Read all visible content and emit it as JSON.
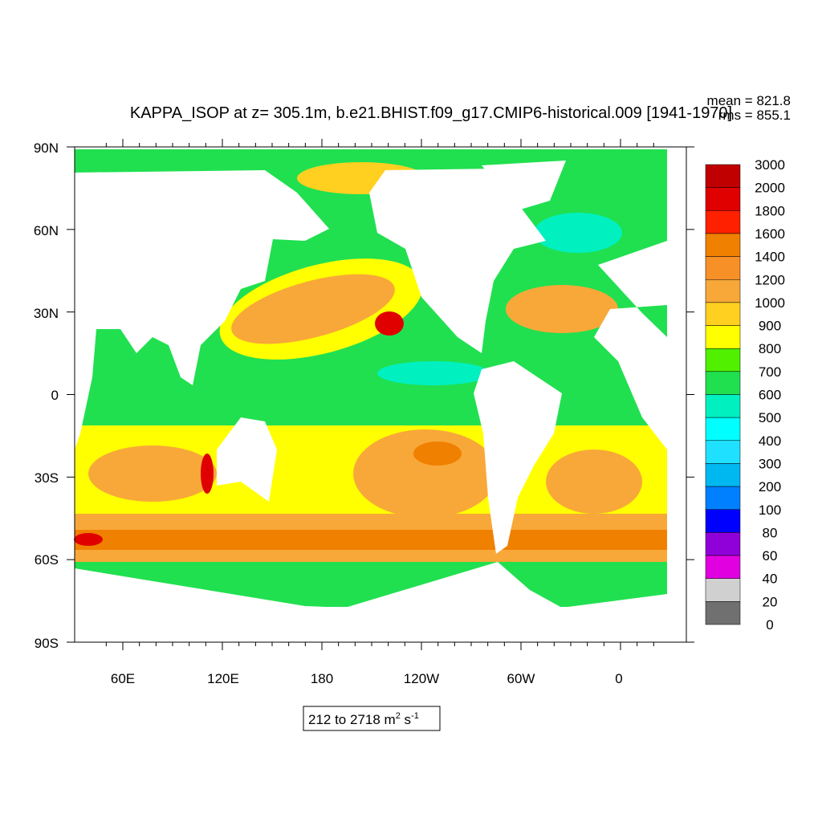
{
  "title": "KAPPA_ISOP at z= 305.1m, b.e21.BHIST.f09_g17.CMIP6-historical.009 [1941-1970]",
  "stats": {
    "mean": "mean = 821.8",
    "rms": "rms = 855.1"
  },
  "lat_labels": [
    "90N",
    "60N",
    "30N",
    "0",
    "30S",
    "60S",
    "90S"
  ],
  "lon_labels": [
    "60E",
    "120E",
    "180",
    "120W",
    "60W",
    "0"
  ],
  "colorbar": {
    "labels": [
      "3000",
      "2000",
      "1800",
      "1600",
      "1400",
      "1200",
      "1000",
      "900",
      "800",
      "700",
      "600",
      "500",
      "400",
      "300",
      "200",
      "100",
      "80",
      "60",
      "40",
      "20",
      "0"
    ],
    "colors": [
      "#c00000",
      "#e00000",
      "#ff2000",
      "#f08000",
      "#f89028",
      "#f8a838",
      "#ffd020",
      "#ffff00",
      "#50f000",
      "#20e050",
      "#00f0c0",
      "#00ffff",
      "#20e0ff",
      "#00b8f0",
      "#0080ff",
      "#0000ff",
      "#9000d8",
      "#e000e0",
      "#d0d0d0",
      "#707070"
    ]
  },
  "range_label": {
    "text": "212 to 2718 m",
    "sup1": "2",
    "mid": " s",
    "sup2": "-1"
  }
}
